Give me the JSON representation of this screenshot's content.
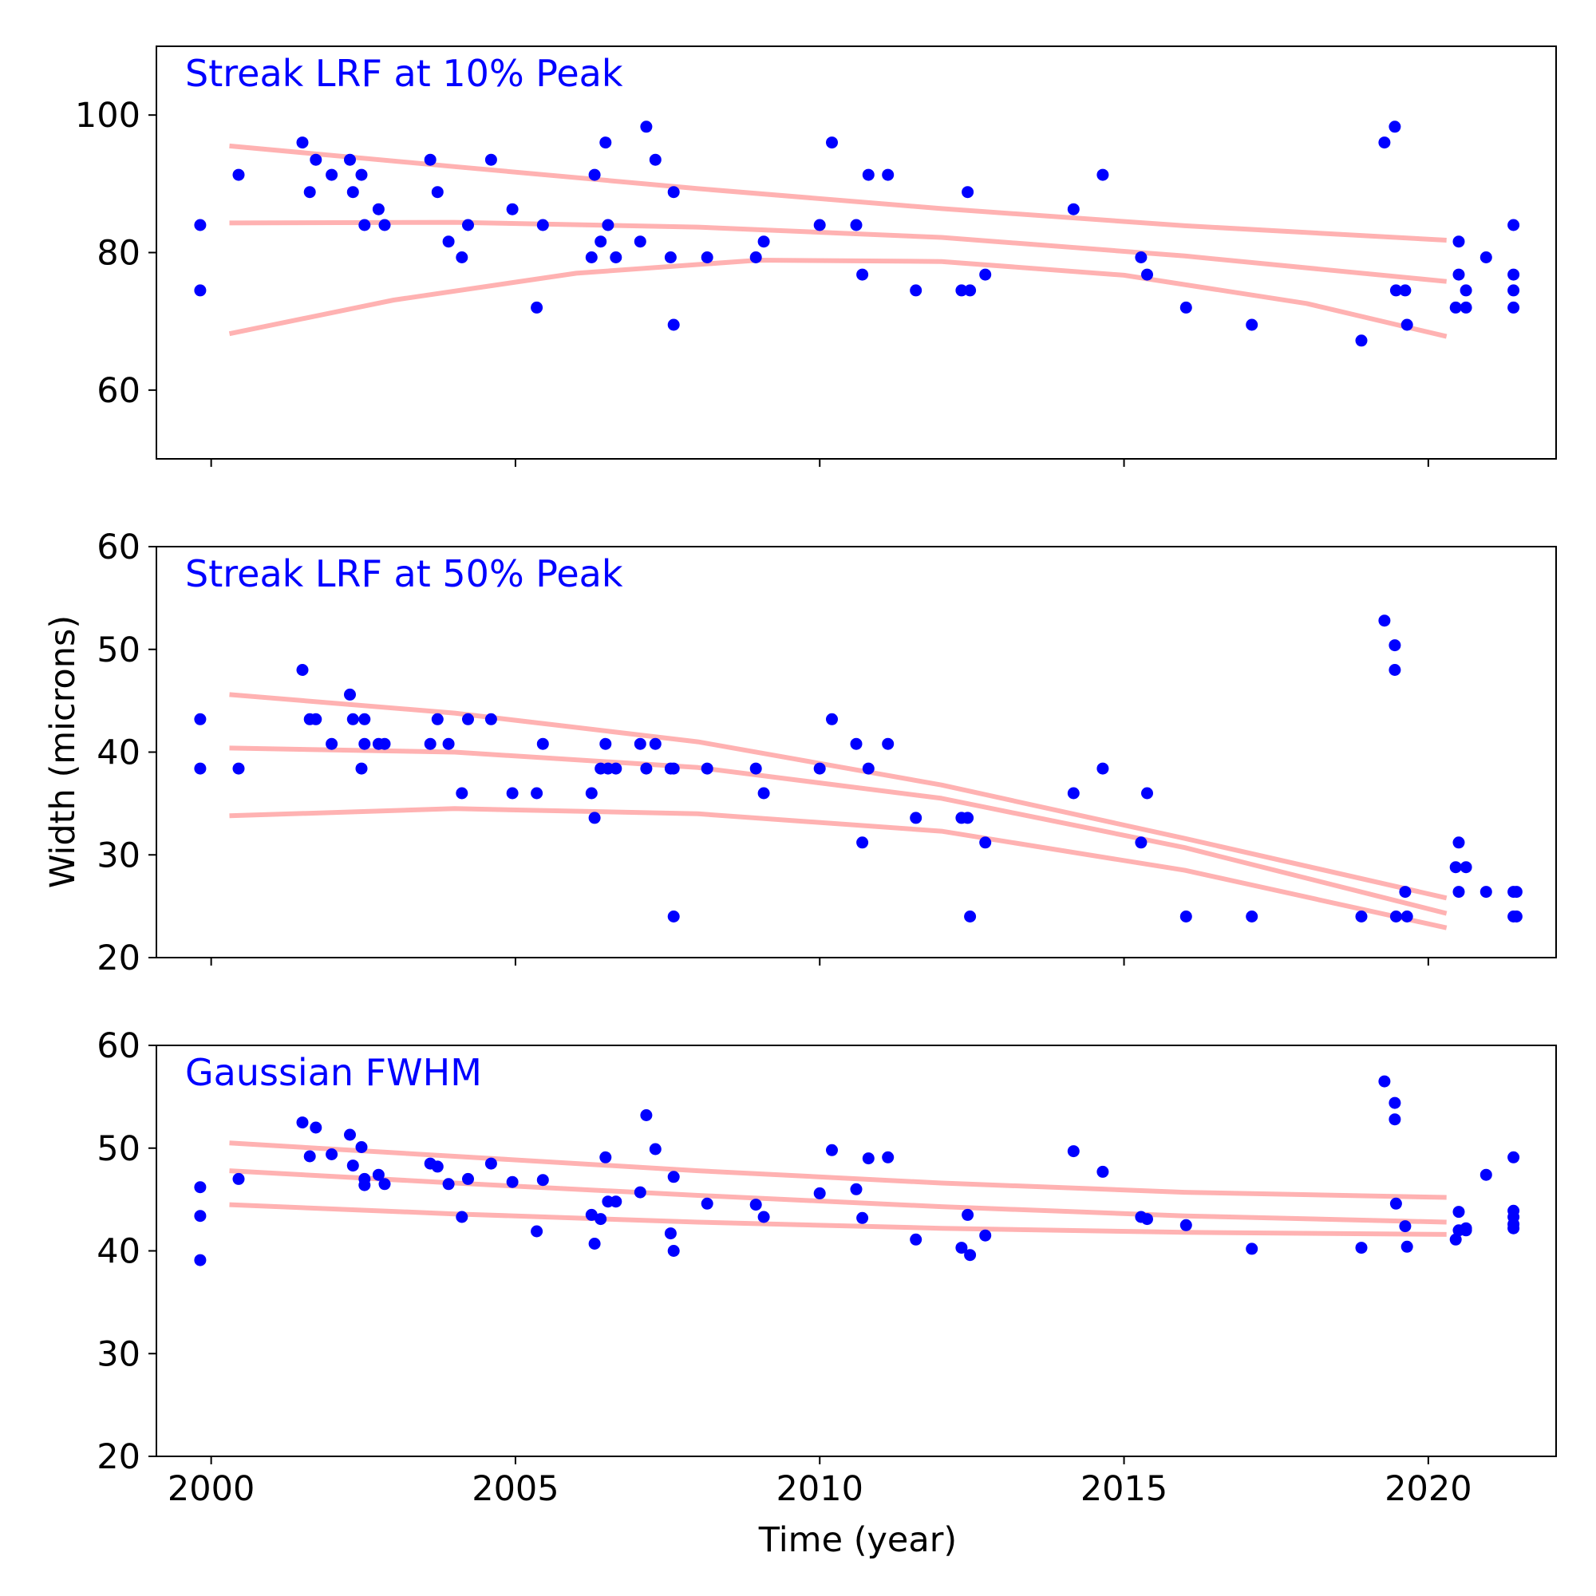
{
  "figure": {
    "xlabel": "Time (year)",
    "ylabel": "Width (microns)",
    "point_color": "#0000ff",
    "fit_color": "#ffb2b2",
    "title_color": "#0000ff"
  },
  "chart_data": [
    {
      "type": "scatter",
      "title": "Streak LRF at 10% Peak",
      "xlim": [
        1999.1,
        2022.1
      ],
      "ylim": [
        50,
        110
      ],
      "xticks": [
        2000,
        2005,
        2010,
        2015,
        2020
      ],
      "yticks": [
        60,
        80,
        100
      ],
      "show_x_tick_labels": false,
      "grid": false,
      "points": [
        [
          1999.82,
          84
        ],
        [
          1999.82,
          74.5
        ],
        [
          2000.45,
          91.3
        ],
        [
          2001.5,
          96
        ],
        [
          2001.62,
          88.8
        ],
        [
          2001.72,
          93.5
        ],
        [
          2001.98,
          91.3
        ],
        [
          2002.28,
          93.5
        ],
        [
          2002.33,
          88.8
        ],
        [
          2002.47,
          91.3
        ],
        [
          2002.52,
          84
        ],
        [
          2002.75,
          86.3
        ],
        [
          2002.85,
          84
        ],
        [
          2003.6,
          93.5
        ],
        [
          2003.72,
          88.8
        ],
        [
          2003.9,
          81.6
        ],
        [
          2004.12,
          79.3
        ],
        [
          2004.22,
          84
        ],
        [
          2004.6,
          93.5
        ],
        [
          2004.95,
          86.3
        ],
        [
          2005.35,
          72
        ],
        [
          2005.45,
          84
        ],
        [
          2006.25,
          79.3
        ],
        [
          2006.3,
          91.3
        ],
        [
          2006.4,
          81.6
        ],
        [
          2006.48,
          96
        ],
        [
          2006.52,
          84
        ],
        [
          2006.65,
          79.3
        ],
        [
          2007.05,
          81.6
        ],
        [
          2007.15,
          98.3
        ],
        [
          2007.3,
          93.5
        ],
        [
          2007.55,
          79.3
        ],
        [
          2007.6,
          88.8
        ],
        [
          2007.6,
          69.5
        ],
        [
          2008.15,
          79.3
        ],
        [
          2008.95,
          79.3
        ],
        [
          2009.08,
          81.6
        ],
        [
          2010,
          84
        ],
        [
          2010.2,
          96
        ],
        [
          2010.6,
          84
        ],
        [
          2010.7,
          76.8
        ],
        [
          2010.8,
          91.3
        ],
        [
          2011.12,
          91.3
        ],
        [
          2011.58,
          74.5
        ],
        [
          2012.33,
          74.5
        ],
        [
          2012.43,
          88.8
        ],
        [
          2012.47,
          74.5
        ],
        [
          2012.72,
          76.8
        ],
        [
          2014.17,
          86.3
        ],
        [
          2014.65,
          91.3
        ],
        [
          2015.28,
          79.3
        ],
        [
          2015.38,
          76.8
        ],
        [
          2016.02,
          72
        ],
        [
          2017.1,
          69.5
        ],
        [
          2018.9,
          67.2
        ],
        [
          2019.28,
          96
        ],
        [
          2019.45,
          98.3
        ],
        [
          2019.47,
          74.5
        ],
        [
          2019.62,
          74.5
        ],
        [
          2019.65,
          69.5
        ],
        [
          2020.45,
          72
        ],
        [
          2020.5,
          81.6
        ],
        [
          2020.5,
          76.8
        ],
        [
          2020.62,
          74.5
        ],
        [
          2020.62,
          72
        ],
        [
          2020.95,
          79.3
        ],
        [
          2021.4,
          84
        ],
        [
          2021.4,
          76.8
        ],
        [
          2021.4,
          74.5
        ],
        [
          2021.4,
          72
        ]
      ],
      "fits": [
        {
          "x": [
            2000.3,
            2004,
            2008,
            2012,
            2016,
            2020.3
          ],
          "y": [
            95.5,
            92.5,
            89.3,
            86.4,
            83.9,
            81.8
          ]
        },
        {
          "x": [
            2000.3,
            2004,
            2008,
            2012,
            2016,
            2020.3
          ],
          "y": [
            84.3,
            84.4,
            83.7,
            82.2,
            79.5,
            75.8
          ]
        },
        {
          "x": [
            2000.3,
            2003,
            2006,
            2009,
            2012,
            2015,
            2018,
            2020.3
          ],
          "y": [
            68.2,
            73.1,
            77,
            78.9,
            78.7,
            76.7,
            72.6,
            67.8
          ]
        }
      ]
    },
    {
      "type": "scatter",
      "title": "Streak LRF at 50% Peak",
      "xlim": [
        1999.1,
        2022.1
      ],
      "ylim": [
        20,
        60
      ],
      "xticks": [
        2000,
        2005,
        2010,
        2015,
        2020
      ],
      "yticks": [
        20,
        30,
        40,
        50,
        60
      ],
      "show_x_tick_labels": false,
      "grid": false,
      "points": [
        [
          1999.82,
          43.2
        ],
        [
          1999.82,
          38.4
        ],
        [
          2000.45,
          38.4
        ],
        [
          2001.5,
          48
        ],
        [
          2001.62,
          43.2
        ],
        [
          2001.72,
          43.2
        ],
        [
          2001.98,
          40.8
        ],
        [
          2002.28,
          45.6
        ],
        [
          2002.33,
          43.2
        ],
        [
          2002.47,
          38.4
        ],
        [
          2002.52,
          43.2
        ],
        [
          2002.52,
          40.8
        ],
        [
          2002.75,
          40.8
        ],
        [
          2002.85,
          40.8
        ],
        [
          2003.6,
          40.8
        ],
        [
          2003.72,
          43.2
        ],
        [
          2003.9,
          40.8
        ],
        [
          2004.12,
          36
        ],
        [
          2004.22,
          43.2
        ],
        [
          2004.6,
          43.2
        ],
        [
          2004.95,
          36
        ],
        [
          2005.35,
          36
        ],
        [
          2005.45,
          40.8
        ],
        [
          2006.25,
          36
        ],
        [
          2006.3,
          33.6
        ],
        [
          2006.4,
          38.4
        ],
        [
          2006.48,
          40.8
        ],
        [
          2006.52,
          38.4
        ],
        [
          2006.65,
          38.4
        ],
        [
          2007.05,
          40.8
        ],
        [
          2007.15,
          38.4
        ],
        [
          2007.3,
          40.8
        ],
        [
          2007.55,
          38.4
        ],
        [
          2007.6,
          38.4
        ],
        [
          2007.6,
          24
        ],
        [
          2008.15,
          38.4
        ],
        [
          2008.95,
          38.4
        ],
        [
          2009.08,
          36
        ],
        [
          2010,
          38.4
        ],
        [
          2010.2,
          43.2
        ],
        [
          2010.6,
          40.8
        ],
        [
          2010.7,
          31.2
        ],
        [
          2010.8,
          38.4
        ],
        [
          2011.12,
          40.8
        ],
        [
          2011.58,
          33.6
        ],
        [
          2012.33,
          33.6
        ],
        [
          2012.43,
          33.6
        ],
        [
          2012.47,
          24
        ],
        [
          2012.72,
          31.2
        ],
        [
          2014.17,
          36
        ],
        [
          2014.65,
          38.4
        ],
        [
          2015.28,
          31.2
        ],
        [
          2015.38,
          36
        ],
        [
          2016.02,
          24
        ],
        [
          2017.1,
          24
        ],
        [
          2018.9,
          24
        ],
        [
          2019.28,
          52.8
        ],
        [
          2019.45,
          50.4
        ],
        [
          2019.45,
          48
        ],
        [
          2019.47,
          24
        ],
        [
          2019.62,
          26.4
        ],
        [
          2019.65,
          24
        ],
        [
          2020.45,
          28.8
        ],
        [
          2020.5,
          31.2
        ],
        [
          2020.5,
          26.4
        ],
        [
          2020.62,
          28.8
        ],
        [
          2020.95,
          26.4
        ],
        [
          2021.4,
          26.4
        ],
        [
          2021.4,
          24
        ],
        [
          2021.45,
          26.4
        ],
        [
          2021.45,
          24
        ]
      ],
      "fits": [
        {
          "x": [
            2000.3,
            2004,
            2008,
            2012,
            2016,
            2020.3
          ],
          "y": [
            45.6,
            43.8,
            41,
            36.8,
            31.6,
            25.8
          ]
        },
        {
          "x": [
            2000.3,
            2004,
            2008,
            2012,
            2016,
            2020.3
          ],
          "y": [
            40.4,
            40,
            38.5,
            35.5,
            30.7,
            24.3
          ]
        },
        {
          "x": [
            2000.3,
            2004,
            2008,
            2012,
            2016,
            2020.3
          ],
          "y": [
            33.8,
            34.5,
            34,
            32.3,
            28.5,
            22.9
          ]
        }
      ]
    },
    {
      "type": "scatter",
      "title": "Gaussian FWHM",
      "xlim": [
        1999.1,
        2022.1
      ],
      "ylim": [
        20,
        60
      ],
      "xticks": [
        2000,
        2005,
        2010,
        2015,
        2020
      ],
      "yticks": [
        20,
        30,
        40,
        50,
        60
      ],
      "show_x_tick_labels": true,
      "grid": false,
      "points": [
        [
          1999.82,
          46.2
        ],
        [
          1999.82,
          43.4
        ],
        [
          1999.82,
          39.1
        ],
        [
          2000.45,
          47
        ],
        [
          2001.5,
          52.5
        ],
        [
          2001.62,
          49.2
        ],
        [
          2001.72,
          52
        ],
        [
          2001.98,
          49.4
        ],
        [
          2002.28,
          51.3
        ],
        [
          2002.33,
          48.3
        ],
        [
          2002.47,
          50.1
        ],
        [
          2002.52,
          47
        ],
        [
          2002.52,
          46.4
        ],
        [
          2002.75,
          47.4
        ],
        [
          2002.85,
          46.5
        ],
        [
          2003.6,
          48.5
        ],
        [
          2003.72,
          48.2
        ],
        [
          2003.9,
          46.5
        ],
        [
          2004.12,
          43.3
        ],
        [
          2004.22,
          47
        ],
        [
          2004.6,
          48.5
        ],
        [
          2004.95,
          46.7
        ],
        [
          2005.35,
          41.9
        ],
        [
          2005.45,
          46.9
        ],
        [
          2006.25,
          43.5
        ],
        [
          2006.3,
          40.7
        ],
        [
          2006.4,
          43.1
        ],
        [
          2006.48,
          49.1
        ],
        [
          2006.52,
          44.8
        ],
        [
          2006.65,
          44.8
        ],
        [
          2007.05,
          45.7
        ],
        [
          2007.15,
          53.2
        ],
        [
          2007.3,
          49.9
        ],
        [
          2007.55,
          41.7
        ],
        [
          2007.6,
          40
        ],
        [
          2007.6,
          47.2
        ],
        [
          2008.15,
          44.6
        ],
        [
          2008.95,
          44.5
        ],
        [
          2009.08,
          43.3
        ],
        [
          2010,
          45.6
        ],
        [
          2010.2,
          49.8
        ],
        [
          2010.6,
          46
        ],
        [
          2010.7,
          43.2
        ],
        [
          2010.8,
          49
        ],
        [
          2011.12,
          49.1
        ],
        [
          2011.58,
          41.1
        ],
        [
          2012.33,
          40.3
        ],
        [
          2012.43,
          43.5
        ],
        [
          2012.47,
          39.6
        ],
        [
          2012.72,
          41.5
        ],
        [
          2014.17,
          49.7
        ],
        [
          2014.65,
          47.7
        ],
        [
          2015.28,
          43.3
        ],
        [
          2015.38,
          43.1
        ],
        [
          2016.02,
          42.5
        ],
        [
          2017.1,
          40.2
        ],
        [
          2018.9,
          40.3
        ],
        [
          2019.28,
          56.5
        ],
        [
          2019.45,
          54.4
        ],
        [
          2019.45,
          52.8
        ],
        [
          2019.47,
          44.6
        ],
        [
          2019.62,
          42.4
        ],
        [
          2019.65,
          40.4
        ],
        [
          2020.45,
          41.1
        ],
        [
          2020.5,
          43.8
        ],
        [
          2020.5,
          42
        ],
        [
          2020.62,
          42.2
        ],
        [
          2020.62,
          42
        ],
        [
          2020.95,
          47.4
        ],
        [
          2021.4,
          49.1
        ],
        [
          2021.4,
          43.9
        ],
        [
          2021.4,
          43.3
        ],
        [
          2021.4,
          42.6
        ],
        [
          2021.4,
          42.2
        ]
      ],
      "fits": [
        {
          "x": [
            2000.3,
            2004,
            2008,
            2012,
            2016,
            2020.3
          ],
          "y": [
            50.5,
            49.2,
            47.8,
            46.6,
            45.7,
            45.2
          ]
        },
        {
          "x": [
            2000.3,
            2004,
            2008,
            2012,
            2016,
            2020.3
          ],
          "y": [
            47.8,
            46.6,
            45.4,
            44.3,
            43.4,
            42.8
          ]
        },
        {
          "x": [
            2000.3,
            2004,
            2008,
            2012,
            2016,
            2020.3
          ],
          "y": [
            44.5,
            43.6,
            42.8,
            42.2,
            41.8,
            41.6
          ]
        }
      ]
    }
  ]
}
